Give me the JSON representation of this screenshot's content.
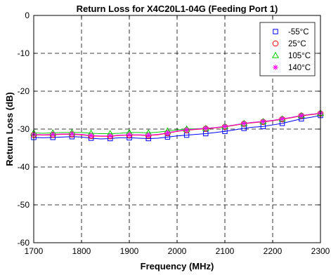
{
  "chart_data": {
    "type": "line",
    "title": "Return Loss for X4C20L1-04G (Feeding Port 1)",
    "xlabel": "Frequency (MHz)",
    "ylabel": "Return Loss (dB)",
    "xlim": [
      1700,
      2300
    ],
    "ylim": [
      -60,
      0
    ],
    "x_ticks": [
      1700,
      1800,
      1900,
      2000,
      2100,
      2200,
      2300
    ],
    "y_ticks": [
      0,
      -10,
      -20,
      -30,
      -40,
      -50,
      -60
    ],
    "grid": true,
    "grid_style": "dashed",
    "legend_position": "top-right",
    "marker_x": [
      1700,
      1740,
      1780,
      1820,
      1860,
      1900,
      1940,
      1980,
      2020,
      2060,
      2100,
      2140,
      2180,
      2220,
      2260,
      2300
    ],
    "series": [
      {
        "name": "-55°C",
        "color": "#0000ff",
        "marker": "square",
        "x": [
          1700,
          1720,
          1740,
          1760,
          1780,
          1800,
          1820,
          1840,
          1860,
          1880,
          1900,
          1920,
          1940,
          1960,
          1980,
          2000,
          2020,
          2040,
          2060,
          2080,
          2100,
          2120,
          2140,
          2160,
          2180,
          2200,
          2220,
          2240,
          2260,
          2280,
          2300
        ],
        "y": [
          -32.2,
          -32.3,
          -32.2,
          -32.1,
          -32.0,
          -32.1,
          -32.4,
          -32.6,
          -32.5,
          -32.3,
          -32.3,
          -32.4,
          -32.5,
          -32.4,
          -32.1,
          -31.8,
          -31.6,
          -31.4,
          -31.2,
          -30.9,
          -30.6,
          -30.2,
          -29.8,
          -29.5,
          -29.3,
          -28.9,
          -28.5,
          -27.9,
          -27.3,
          -26.9,
          -26.4
        ]
      },
      {
        "name": "25°C",
        "color": "#ff0000",
        "marker": "circle",
        "x": [
          1700,
          1720,
          1740,
          1760,
          1780,
          1800,
          1820,
          1840,
          1860,
          1880,
          1900,
          1920,
          1940,
          1960,
          1980,
          2000,
          2020,
          2040,
          2060,
          2080,
          2100,
          2120,
          2140,
          2160,
          2180,
          2200,
          2220,
          2240,
          2260,
          2280,
          2300
        ],
        "y": [
          -31.5,
          -31.6,
          -31.5,
          -31.4,
          -31.4,
          -31.5,
          -31.8,
          -31.9,
          -31.9,
          -31.7,
          -31.6,
          -31.6,
          -31.7,
          -31.5,
          -31.1,
          -30.6,
          -30.3,
          -30.1,
          -29.9,
          -29.7,
          -29.4,
          -29.0,
          -28.6,
          -28.3,
          -28.1,
          -27.8,
          -27.4,
          -27.0,
          -26.5,
          -26.2,
          -25.9
        ]
      },
      {
        "name": "105°C",
        "color": "#00cc00",
        "marker": "triangle",
        "x": [
          1700,
          1720,
          1740,
          1760,
          1780,
          1800,
          1820,
          1840,
          1860,
          1880,
          1900,
          1920,
          1940,
          1960,
          1980,
          2000,
          2020,
          2040,
          2060,
          2080,
          2100,
          2120,
          2140,
          2160,
          2180,
          2200,
          2220,
          2240,
          2260,
          2280,
          2300
        ],
        "y": [
          -31.0,
          -31.1,
          -31.0,
          -30.9,
          -30.9,
          -30.9,
          -31.1,
          -31.2,
          -31.2,
          -31.1,
          -30.9,
          -30.9,
          -31.0,
          -30.8,
          -30.5,
          -30.2,
          -30.0,
          -29.9,
          -29.8,
          -29.6,
          -29.3,
          -28.9,
          -28.5,
          -28.2,
          -28.0,
          -27.7,
          -27.3,
          -26.9,
          -26.4,
          -26.1,
          -25.8
        ]
      },
      {
        "name": "140°C",
        "color": "#ff00ff",
        "marker": "asterisk",
        "x": [
          1700,
          1720,
          1740,
          1760,
          1780,
          1800,
          1820,
          1840,
          1860,
          1880,
          1900,
          1920,
          1940,
          1960,
          1980,
          2000,
          2020,
          2040,
          2060,
          2080,
          2100,
          2120,
          2140,
          2160,
          2180,
          2200,
          2220,
          2240,
          2260,
          2280,
          2300
        ],
        "y": [
          -31.4,
          -31.5,
          -31.4,
          -31.3,
          -31.3,
          -31.4,
          -31.7,
          -31.8,
          -31.8,
          -31.6,
          -31.5,
          -31.5,
          -31.6,
          -31.4,
          -31.0,
          -30.5,
          -30.2,
          -30.0,
          -29.8,
          -29.6,
          -29.3,
          -28.9,
          -28.5,
          -28.2,
          -28.0,
          -27.7,
          -27.3,
          -26.9,
          -26.4,
          -26.1,
          -25.8
        ]
      }
    ]
  }
}
